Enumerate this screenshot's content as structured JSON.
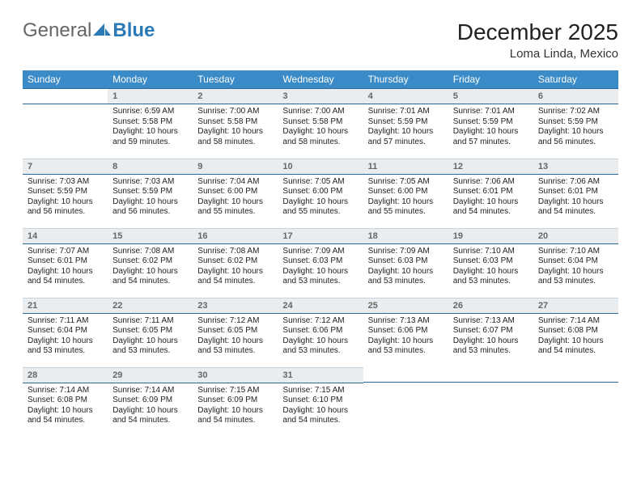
{
  "brand": {
    "part1": "General",
    "part2": "Blue"
  },
  "title": {
    "month": "December 2025",
    "location": "Loma Linda, Mexico"
  },
  "dayHeaders": [
    "Sunday",
    "Monday",
    "Tuesday",
    "Wednesday",
    "Thursday",
    "Friday",
    "Saturday"
  ],
  "colors": {
    "header_bg": "#3b8bc8",
    "header_text": "#ffffff",
    "daynum_bg": "#e9edf0",
    "rule": "#2a6a9a"
  },
  "labels": {
    "sunrise": "Sunrise: ",
    "sunset": "Sunset: ",
    "daylight": "Daylight: "
  },
  "weeks": [
    [
      {
        "n": "",
        "sr": "",
        "ss": "",
        "dl": ""
      },
      {
        "n": "1",
        "sr": "6:59 AM",
        "ss": "5:58 PM",
        "dl": "10 hours and 59 minutes."
      },
      {
        "n": "2",
        "sr": "7:00 AM",
        "ss": "5:58 PM",
        "dl": "10 hours and 58 minutes."
      },
      {
        "n": "3",
        "sr": "7:00 AM",
        "ss": "5:58 PM",
        "dl": "10 hours and 58 minutes."
      },
      {
        "n": "4",
        "sr": "7:01 AM",
        "ss": "5:59 PM",
        "dl": "10 hours and 57 minutes."
      },
      {
        "n": "5",
        "sr": "7:01 AM",
        "ss": "5:59 PM",
        "dl": "10 hours and 57 minutes."
      },
      {
        "n": "6",
        "sr": "7:02 AM",
        "ss": "5:59 PM",
        "dl": "10 hours and 56 minutes."
      }
    ],
    [
      {
        "n": "7",
        "sr": "7:03 AM",
        "ss": "5:59 PM",
        "dl": "10 hours and 56 minutes."
      },
      {
        "n": "8",
        "sr": "7:03 AM",
        "ss": "5:59 PM",
        "dl": "10 hours and 56 minutes."
      },
      {
        "n": "9",
        "sr": "7:04 AM",
        "ss": "6:00 PM",
        "dl": "10 hours and 55 minutes."
      },
      {
        "n": "10",
        "sr": "7:05 AM",
        "ss": "6:00 PM",
        "dl": "10 hours and 55 minutes."
      },
      {
        "n": "11",
        "sr": "7:05 AM",
        "ss": "6:00 PM",
        "dl": "10 hours and 55 minutes."
      },
      {
        "n": "12",
        "sr": "7:06 AM",
        "ss": "6:01 PM",
        "dl": "10 hours and 54 minutes."
      },
      {
        "n": "13",
        "sr": "7:06 AM",
        "ss": "6:01 PM",
        "dl": "10 hours and 54 minutes."
      }
    ],
    [
      {
        "n": "14",
        "sr": "7:07 AM",
        "ss": "6:01 PM",
        "dl": "10 hours and 54 minutes."
      },
      {
        "n": "15",
        "sr": "7:08 AM",
        "ss": "6:02 PM",
        "dl": "10 hours and 54 minutes."
      },
      {
        "n": "16",
        "sr": "7:08 AM",
        "ss": "6:02 PM",
        "dl": "10 hours and 54 minutes."
      },
      {
        "n": "17",
        "sr": "7:09 AM",
        "ss": "6:03 PM",
        "dl": "10 hours and 53 minutes."
      },
      {
        "n": "18",
        "sr": "7:09 AM",
        "ss": "6:03 PM",
        "dl": "10 hours and 53 minutes."
      },
      {
        "n": "19",
        "sr": "7:10 AM",
        "ss": "6:03 PM",
        "dl": "10 hours and 53 minutes."
      },
      {
        "n": "20",
        "sr": "7:10 AM",
        "ss": "6:04 PM",
        "dl": "10 hours and 53 minutes."
      }
    ],
    [
      {
        "n": "21",
        "sr": "7:11 AM",
        "ss": "6:04 PM",
        "dl": "10 hours and 53 minutes."
      },
      {
        "n": "22",
        "sr": "7:11 AM",
        "ss": "6:05 PM",
        "dl": "10 hours and 53 minutes."
      },
      {
        "n": "23",
        "sr": "7:12 AM",
        "ss": "6:05 PM",
        "dl": "10 hours and 53 minutes."
      },
      {
        "n": "24",
        "sr": "7:12 AM",
        "ss": "6:06 PM",
        "dl": "10 hours and 53 minutes."
      },
      {
        "n": "25",
        "sr": "7:13 AM",
        "ss": "6:06 PM",
        "dl": "10 hours and 53 minutes."
      },
      {
        "n": "26",
        "sr": "7:13 AM",
        "ss": "6:07 PM",
        "dl": "10 hours and 53 minutes."
      },
      {
        "n": "27",
        "sr": "7:14 AM",
        "ss": "6:08 PM",
        "dl": "10 hours and 54 minutes."
      }
    ],
    [
      {
        "n": "28",
        "sr": "7:14 AM",
        "ss": "6:08 PM",
        "dl": "10 hours and 54 minutes."
      },
      {
        "n": "29",
        "sr": "7:14 AM",
        "ss": "6:09 PM",
        "dl": "10 hours and 54 minutes."
      },
      {
        "n": "30",
        "sr": "7:15 AM",
        "ss": "6:09 PM",
        "dl": "10 hours and 54 minutes."
      },
      {
        "n": "31",
        "sr": "7:15 AM",
        "ss": "6:10 PM",
        "dl": "10 hours and 54 minutes."
      },
      {
        "n": "",
        "sr": "",
        "ss": "",
        "dl": ""
      },
      {
        "n": "",
        "sr": "",
        "ss": "",
        "dl": ""
      },
      {
        "n": "",
        "sr": "",
        "ss": "",
        "dl": ""
      }
    ]
  ]
}
